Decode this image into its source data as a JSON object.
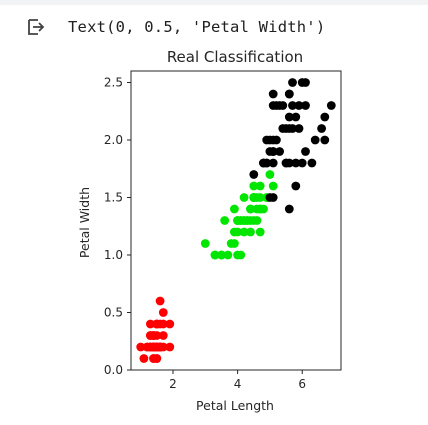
{
  "output": {
    "icon": "output-arrow-icon",
    "text": "Text(0, 0.5, 'Petal Width')"
  },
  "chart_data": {
    "type": "scatter",
    "title": "Real Classification",
    "xlabel": "Petal Length",
    "ylabel": "Petal Width",
    "xlim": [
      0.7,
      7.2
    ],
    "ylim": [
      0.0,
      2.6
    ],
    "xticks": [
      2,
      4,
      6
    ],
    "yticks": [
      0.0,
      0.5,
      1.0,
      1.5,
      2.0,
      2.5
    ],
    "ytick_labels": [
      "0.0",
      "0.5",
      "1.0",
      "1.5",
      "2.0",
      "2.5"
    ],
    "grid": false,
    "legend": "none",
    "series": [
      {
        "color": "#ff0000",
        "points": [
          [
            1.4,
            0.2
          ],
          [
            1.4,
            0.2
          ],
          [
            1.3,
            0.2
          ],
          [
            1.5,
            0.2
          ],
          [
            1.4,
            0.2
          ],
          [
            1.7,
            0.4
          ],
          [
            1.4,
            0.3
          ],
          [
            1.5,
            0.2
          ],
          [
            1.4,
            0.2
          ],
          [
            1.5,
            0.1
          ],
          [
            1.5,
            0.2
          ],
          [
            1.6,
            0.2
          ],
          [
            1.4,
            0.1
          ],
          [
            1.1,
            0.1
          ],
          [
            1.2,
            0.2
          ],
          [
            1.5,
            0.4
          ],
          [
            1.3,
            0.4
          ],
          [
            1.4,
            0.3
          ],
          [
            1.7,
            0.3
          ],
          [
            1.5,
            0.3
          ],
          [
            1.7,
            0.2
          ],
          [
            1.5,
            0.4
          ],
          [
            1.0,
            0.2
          ],
          [
            1.7,
            0.5
          ],
          [
            1.9,
            0.2
          ],
          [
            1.6,
            0.2
          ],
          [
            1.6,
            0.4
          ],
          [
            1.5,
            0.2
          ],
          [
            1.4,
            0.2
          ],
          [
            1.6,
            0.2
          ],
          [
            1.6,
            0.2
          ],
          [
            1.5,
            0.4
          ],
          [
            1.5,
            0.1
          ],
          [
            1.4,
            0.2
          ],
          [
            1.5,
            0.2
          ],
          [
            1.2,
            0.2
          ],
          [
            1.3,
            0.2
          ],
          [
            1.4,
            0.1
          ],
          [
            1.3,
            0.2
          ],
          [
            1.5,
            0.2
          ],
          [
            1.3,
            0.3
          ],
          [
            1.3,
            0.3
          ],
          [
            1.3,
            0.2
          ],
          [
            1.6,
            0.6
          ],
          [
            1.9,
            0.4
          ],
          [
            1.4,
            0.3
          ],
          [
            1.6,
            0.2
          ],
          [
            1.4,
            0.2
          ],
          [
            1.5,
            0.2
          ],
          [
            1.4,
            0.2
          ]
        ]
      },
      {
        "color": "#00e600",
        "points": [
          [
            4.7,
            1.4
          ],
          [
            4.5,
            1.5
          ],
          [
            4.9,
            1.5
          ],
          [
            4.0,
            1.3
          ],
          [
            4.6,
            1.5
          ],
          [
            4.5,
            1.3
          ],
          [
            4.7,
            1.6
          ],
          [
            3.3,
            1.0
          ],
          [
            4.6,
            1.3
          ],
          [
            3.9,
            1.4
          ],
          [
            3.5,
            1.0
          ],
          [
            4.2,
            1.5
          ],
          [
            4.0,
            1.0
          ],
          [
            4.7,
            1.4
          ],
          [
            3.6,
            1.3
          ],
          [
            4.4,
            1.4
          ],
          [
            4.5,
            1.5
          ],
          [
            4.1,
            1.0
          ],
          [
            4.5,
            1.5
          ],
          [
            3.9,
            1.1
          ],
          [
            4.8,
            1.8
          ],
          [
            4.0,
            1.3
          ],
          [
            4.9,
            1.5
          ],
          [
            4.7,
            1.2
          ],
          [
            4.3,
            1.3
          ],
          [
            4.4,
            1.4
          ],
          [
            4.8,
            1.4
          ],
          [
            5.0,
            1.7
          ],
          [
            4.5,
            1.5
          ],
          [
            3.5,
            1.0
          ],
          [
            3.8,
            1.1
          ],
          [
            3.7,
            1.0
          ],
          [
            3.9,
            1.2
          ],
          [
            5.1,
            1.6
          ],
          [
            4.5,
            1.5
          ],
          [
            4.5,
            1.6
          ],
          [
            4.7,
            1.5
          ],
          [
            4.4,
            1.3
          ],
          [
            4.1,
            1.3
          ],
          [
            4.0,
            1.3
          ],
          [
            4.4,
            1.2
          ],
          [
            4.6,
            1.4
          ],
          [
            4.0,
            1.2
          ],
          [
            3.3,
            1.0
          ],
          [
            4.2,
            1.3
          ],
          [
            4.2,
            1.2
          ],
          [
            4.2,
            1.3
          ],
          [
            4.3,
            1.3
          ],
          [
            3.0,
            1.1
          ],
          [
            4.1,
            1.3
          ]
        ]
      },
      {
        "color": "#000000",
        "points": [
          [
            6.0,
            2.5
          ],
          [
            5.1,
            1.9
          ],
          [
            5.9,
            2.1
          ],
          [
            5.6,
            1.8
          ],
          [
            5.8,
            2.2
          ],
          [
            6.6,
            2.1
          ],
          [
            4.5,
            1.7
          ],
          [
            6.3,
            1.8
          ],
          [
            5.8,
            1.8
          ],
          [
            6.1,
            2.5
          ],
          [
            5.1,
            2.0
          ],
          [
            5.3,
            1.9
          ],
          [
            5.5,
            2.1
          ],
          [
            5.0,
            2.0
          ],
          [
            5.1,
            2.4
          ],
          [
            5.3,
            2.3
          ],
          [
            5.5,
            1.8
          ],
          [
            6.7,
            2.2
          ],
          [
            6.9,
            2.3
          ],
          [
            5.0,
            1.5
          ],
          [
            5.7,
            2.3
          ],
          [
            4.9,
            2.0
          ],
          [
            6.7,
            2.0
          ],
          [
            4.9,
            1.8
          ],
          [
            5.7,
            2.1
          ],
          [
            6.0,
            1.8
          ],
          [
            4.8,
            1.8
          ],
          [
            4.9,
            1.8
          ],
          [
            5.6,
            2.1
          ],
          [
            5.8,
            1.6
          ],
          [
            6.1,
            1.9
          ],
          [
            6.4,
            2.0
          ],
          [
            5.6,
            2.2
          ],
          [
            5.1,
            1.5
          ],
          [
            5.6,
            1.4
          ],
          [
            6.1,
            2.3
          ],
          [
            5.6,
            2.4
          ],
          [
            5.5,
            1.8
          ],
          [
            4.8,
            1.8
          ],
          [
            5.4,
            2.1
          ],
          [
            5.6,
            2.4
          ],
          [
            5.1,
            2.3
          ],
          [
            5.1,
            1.9
          ],
          [
            5.9,
            2.3
          ],
          [
            5.7,
            2.5
          ],
          [
            5.2,
            2.3
          ],
          [
            5.0,
            1.9
          ],
          [
            5.2,
            2.0
          ],
          [
            5.4,
            2.3
          ],
          [
            5.1,
            1.8
          ]
        ]
      }
    ]
  }
}
